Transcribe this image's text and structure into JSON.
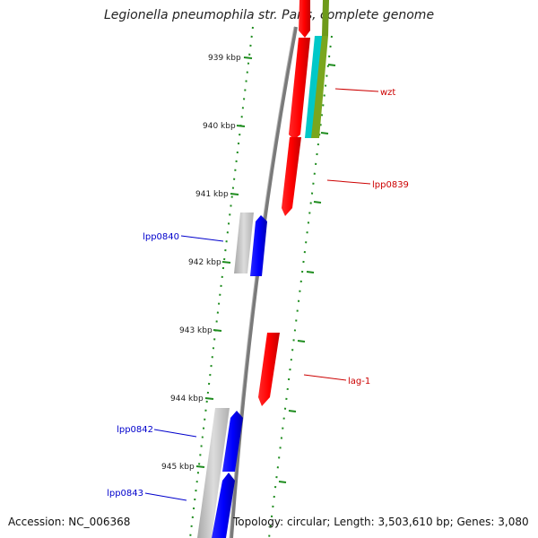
{
  "title": "Legionella pneumophila str. Paris, complete genome",
  "accession": "Accession: NC_006368",
  "topology": "Topology: circular; Length: 3,503,610 bp; Genes: 3,080",
  "ticks": [
    "939 kbp",
    "940 kbp",
    "941 kbp",
    "942 kbp",
    "943 kbp",
    "944 kbp",
    "945 kbp"
  ],
  "genes": [
    {
      "name": "wzt",
      "color": "#cc0000"
    },
    {
      "name": "lpp0839",
      "color": "#cc0000"
    },
    {
      "name": "lpp0840",
      "color": "#0000cc"
    },
    {
      "name": "lag-1",
      "color": "#cc0000"
    },
    {
      "name": "lpp0842",
      "color": "#0000cc"
    },
    {
      "name": "lpp0843",
      "color": "#0000cc"
    }
  ],
  "colors": {
    "forward_cds": "#ff0000",
    "reverse_cds": "#0000ff",
    "tick": "#1e8c1e",
    "backbone": "#808080",
    "grey_feature": "#c0c0c0",
    "cyan_feature": "#00cccc",
    "olive_feature": "#88aa22"
  }
}
